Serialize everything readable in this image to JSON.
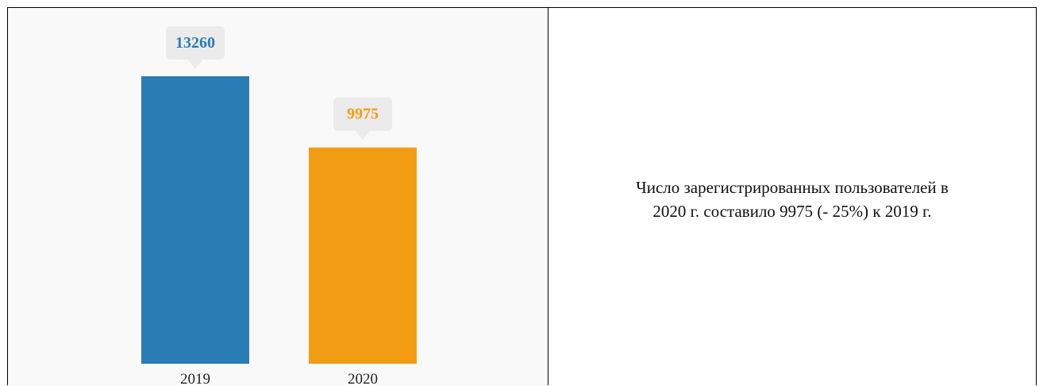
{
  "chart_data": {
    "type": "bar",
    "categories": [
      "2019",
      "2020"
    ],
    "values": [
      13260,
      9975
    ],
    "data_labels": [
      "13260",
      "9975"
    ],
    "colors": [
      "#2a7db4",
      "#f29c14"
    ],
    "title": "",
    "xlabel": "",
    "ylabel": "",
    "ylim": [
      0,
      13260
    ],
    "grid": false,
    "legend": "none"
  },
  "caption": {
    "line1": "Число зарегистрированных пользователей в",
    "line2": "2020 г. составило 9975 (- 25%) к 2019 г."
  },
  "colors": {
    "bubble": "#ebebeb",
    "chart_bg": "#f9f9f9"
  }
}
